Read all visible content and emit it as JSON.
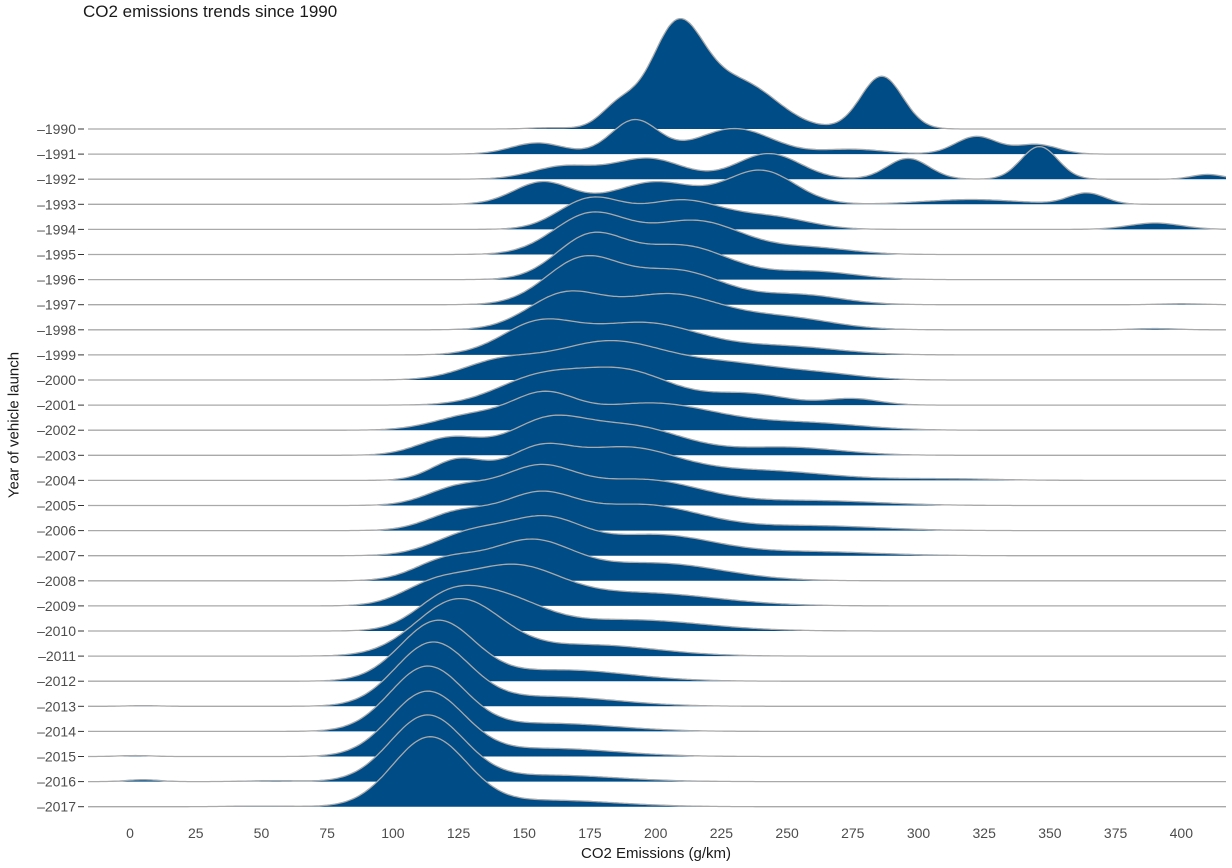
{
  "chart_data": {
    "type": "ridgeline",
    "title": "CO2 emissions trends since 1990",
    "xlabel": "CO2 Emissions (g/km)",
    "ylabel": "Year of vehicle launch",
    "xlim": [
      -16,
      417
    ],
    "x_ticks": [
      0,
      25,
      50,
      75,
      100,
      125,
      150,
      175,
      200,
      225,
      250,
      275,
      300,
      325,
      350,
      375,
      400
    ],
    "x_tick_labels": [
      "0",
      "25",
      "50",
      "75",
      "100",
      "125",
      "150",
      "175",
      "200",
      "225",
      "250",
      "275",
      "300",
      "325",
      "350",
      "375",
      "400"
    ],
    "categories": [
      "1990",
      "1991",
      "1992",
      "1993",
      "1994",
      "1995",
      "1996",
      "1997",
      "1998",
      "1999",
      "2000",
      "2001",
      "2002",
      "2003",
      "2004",
      "2005",
      "2006",
      "2007",
      "2008",
      "2009",
      "2010",
      "2011",
      "2012",
      "2013",
      "2014",
      "2015",
      "2016",
      "2017"
    ],
    "y_tick_labels": [
      "1990",
      "1991",
      "1992",
      "1993",
      "1994",
      "1995",
      "1996",
      "1997",
      "1998",
      "1999",
      "2000",
      "2001",
      "2002",
      "2003",
      "2004",
      "2005",
      "2006",
      "2007",
      "2008",
      "2009",
      "2010",
      "2011",
      "2012",
      "2013",
      "2014",
      "2015",
      "2016",
      "2017"
    ],
    "fill_color": "#004c87",
    "line_color": "#a9a9a9",
    "grid": false,
    "series": [
      {
        "name": "1990",
        "peaks": [
          [
            160,
            8,
            0.04
          ],
          [
            186,
            7,
            0.69
          ],
          [
            208,
            10,
            3.09
          ],
          [
            232,
            14,
            1.44
          ],
          [
            286,
            8,
            1.65
          ]
        ]
      },
      {
        "name": "1991",
        "peaks": [
          [
            155,
            10,
            0.35
          ],
          [
            192,
            9,
            1.06
          ],
          [
            230,
            14,
            0.8
          ],
          [
            275,
            12,
            0.15
          ],
          [
            322,
            8,
            0.55
          ],
          [
            345,
            8,
            0.3
          ]
        ]
      },
      {
        "name": "1992",
        "peaks": [
          [
            165,
            12,
            0.4
          ],
          [
            197,
            13,
            0.65
          ],
          [
            243,
            12,
            0.8
          ],
          [
            296,
            8,
            0.65
          ],
          [
            346,
            7,
            1.02
          ],
          [
            410,
            6,
            0.15
          ]
        ]
      },
      {
        "name": "1993",
        "peaks": [
          [
            157,
            11,
            0.7
          ],
          [
            200,
            15,
            0.7
          ],
          [
            240,
            13,
            1.05
          ],
          [
            320,
            18,
            0.15
          ],
          [
            364,
            7,
            0.35
          ]
        ]
      },
      {
        "name": "1994",
        "peaks": [
          [
            175,
            12,
            0.92
          ],
          [
            210,
            16,
            0.9
          ],
          [
            245,
            14,
            0.35
          ],
          [
            390,
            10,
            0.2
          ]
        ]
      },
      {
        "name": "1995",
        "peaks": [
          [
            175,
            14,
            1.23
          ],
          [
            215,
            18,
            1.05
          ],
          [
            260,
            15,
            0.2
          ]
        ]
      },
      {
        "name": "1996",
        "peaks": [
          [
            175,
            13,
            1.3
          ],
          [
            210,
            18,
            1.05
          ],
          [
            260,
            16,
            0.25
          ]
        ]
      },
      {
        "name": "1997",
        "peaks": [
          [
            172,
            14,
            1.37
          ],
          [
            208,
            18,
            1.05
          ],
          [
            255,
            16,
            0.3
          ],
          [
            400,
            8,
            0.03
          ]
        ]
      },
      {
        "name": "1998",
        "peaks": [
          [
            165,
            14,
            1.04
          ],
          [
            205,
            20,
            1.1
          ],
          [
            250,
            18,
            0.35
          ],
          [
            390,
            8,
            0.04
          ]
        ]
      },
      {
        "name": "1999",
        "peaks": [
          [
            155,
            14,
            0.9
          ],
          [
            195,
            22,
            1.0
          ],
          [
            250,
            20,
            0.25
          ]
        ]
      },
      {
        "name": "2000",
        "peaks": [
          [
            140,
            14,
            0.5
          ],
          [
            182,
            22,
            1.2
          ],
          [
            230,
            20,
            0.45
          ],
          [
            265,
            15,
            0.15
          ]
        ]
      },
      {
        "name": "2001",
        "peaks": [
          [
            155,
            16,
            0.8
          ],
          [
            188,
            18,
            1.05
          ],
          [
            235,
            15,
            0.35
          ],
          [
            275,
            10,
            0.2
          ]
        ]
      },
      {
        "name": "2002",
        "peaks": [
          [
            130,
            14,
            0.45
          ],
          [
            157,
            12,
            0.9
          ],
          [
            198,
            26,
            0.85
          ],
          [
            260,
            20,
            0.2
          ]
        ]
      },
      {
        "name": "2003",
        "peaks": [
          [
            122,
            12,
            0.55
          ],
          [
            158,
            14,
            0.95
          ],
          [
            190,
            20,
            0.9
          ],
          [
            250,
            20,
            0.25
          ]
        ]
      },
      {
        "name": "2004",
        "peaks": [
          [
            125,
            10,
            0.65
          ],
          [
            155,
            12,
            0.85
          ],
          [
            188,
            20,
            1.0
          ],
          [
            240,
            25,
            0.3
          ],
          [
            310,
            20,
            0.05
          ]
        ]
      },
      {
        "name": "2005",
        "peaks": [
          [
            125,
            12,
            0.55
          ],
          [
            155,
            14,
            1.1
          ],
          [
            195,
            22,
            0.8
          ],
          [
            260,
            25,
            0.15
          ]
        ]
      },
      {
        "name": "2006",
        "peaks": [
          [
            125,
            12,
            0.55
          ],
          [
            155,
            14,
            1.05
          ],
          [
            195,
            22,
            0.8
          ],
          [
            260,
            25,
            0.15
          ]
        ]
      },
      {
        "name": "2007",
        "peaks": [
          [
            130,
            14,
            0.7
          ],
          [
            158,
            14,
            1.05
          ],
          [
            200,
            22,
            0.65
          ],
          [
            260,
            25,
            0.12
          ]
        ]
      },
      {
        "name": "2008",
        "peaks": [
          [
            120,
            12,
            0.6
          ],
          [
            152,
            16,
            1.2
          ],
          [
            200,
            25,
            0.55
          ]
        ]
      },
      {
        "name": "2009",
        "peaks": [
          [
            115,
            12,
            0.55
          ],
          [
            145,
            18,
            1.2
          ],
          [
            195,
            28,
            0.4
          ]
        ]
      },
      {
        "name": "2010",
        "peaks": [
          [
            120,
            12,
            0.8
          ],
          [
            140,
            16,
            1.0
          ],
          [
            190,
            28,
            0.35
          ]
        ]
      },
      {
        "name": "2011",
        "peaks": [
          [
            125,
            16,
            1.75
          ],
          [
            175,
            25,
            0.35
          ]
        ]
      },
      {
        "name": "2012",
        "peaks": [
          [
            117,
            14,
            1.85
          ],
          [
            165,
            25,
            0.35
          ]
        ]
      },
      {
        "name": "2013",
        "peaks": [
          [
            115,
            14,
            1.95
          ],
          [
            160,
            25,
            0.3
          ],
          [
            5,
            6,
            0.02
          ]
        ]
      },
      {
        "name": "2014",
        "peaks": [
          [
            113,
            14,
            2.0
          ],
          [
            160,
            25,
            0.25
          ]
        ]
      },
      {
        "name": "2015",
        "peaks": [
          [
            113,
            14,
            2.0
          ],
          [
            160,
            25,
            0.25
          ],
          [
            2,
            6,
            0.03
          ]
        ]
      },
      {
        "name": "2016",
        "peaks": [
          [
            113,
            14,
            2.05
          ],
          [
            160,
            25,
            0.2
          ],
          [
            5,
            6,
            0.06
          ],
          [
            55,
            10,
            0.03
          ]
        ]
      },
      {
        "name": "2017",
        "peaks": [
          [
            114,
            14,
            2.15
          ],
          [
            160,
            25,
            0.2
          ],
          [
            50,
            12,
            0.02
          ]
        ]
      }
    ]
  }
}
